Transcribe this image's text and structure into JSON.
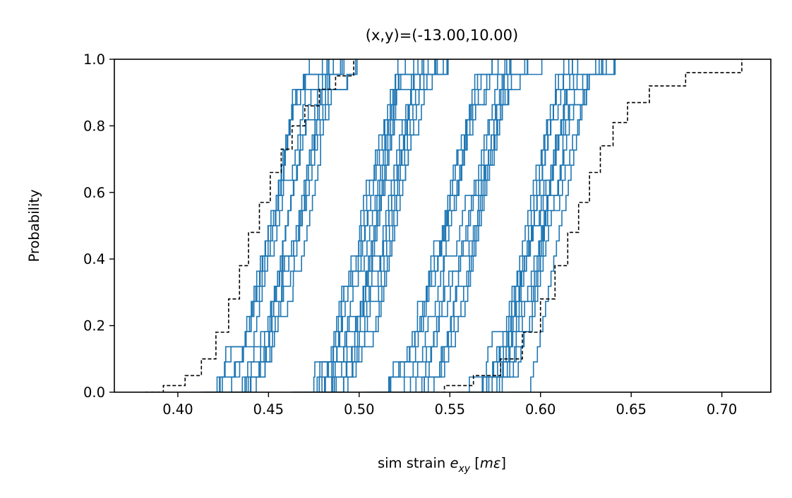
{
  "chart_data": {
    "type": "line",
    "title": "(x,y)=(-13.00,10.00)",
    "xlabel": {
      "prefix": "sim strain ",
      "var": "e",
      "sub": "xy",
      "unit_open": " [",
      "unit_italic": "mε",
      "unit_close": "]"
    },
    "ylabel": "Probability",
    "xlim": [
      0.365,
      0.727
    ],
    "ylim": [
      0.0,
      1.0
    ],
    "xticks": [
      0.4,
      0.45,
      0.5,
      0.55,
      0.6,
      0.65,
      0.7
    ],
    "xtick_labels": [
      "0.40",
      "0.45",
      "0.50",
      "0.55",
      "0.60",
      "0.65",
      "0.70"
    ],
    "yticks": [
      0.0,
      0.2,
      0.4,
      0.6,
      0.8,
      1.0
    ],
    "ytick_labels": [
      "0.0",
      "0.2",
      "0.4",
      "0.6",
      "0.8",
      "1.0"
    ],
    "grid": false,
    "series_style": {
      "ecdf_color": "#1f77b4",
      "envelope_color": "#000000",
      "envelope_dash": "dashed"
    },
    "ecdf_groups": [
      {
        "center": 0.455,
        "spread": 0.026,
        "count": 12
      },
      {
        "center": 0.508,
        "spread": 0.024,
        "count": 14
      },
      {
        "center": 0.553,
        "spread": 0.026,
        "count": 12
      },
      {
        "center": 0.595,
        "spread": 0.024,
        "count": 12
      }
    ],
    "envelope_lower": {
      "x": [
        0.382,
        0.392,
        0.404,
        0.413,
        0.421,
        0.428,
        0.434,
        0.439,
        0.445,
        0.451,
        0.457,
        0.463,
        0.47,
        0.478,
        0.487,
        0.497
      ],
      "y": [
        0.0,
        0.02,
        0.05,
        0.1,
        0.18,
        0.28,
        0.38,
        0.48,
        0.57,
        0.66,
        0.73,
        0.8,
        0.86,
        0.91,
        0.95,
        1.0
      ]
    },
    "envelope_upper": {
      "x": [
        0.533,
        0.547,
        0.563,
        0.578,
        0.59,
        0.6,
        0.608,
        0.615,
        0.621,
        0.627,
        0.633,
        0.64,
        0.648,
        0.66,
        0.68,
        0.711
      ],
      "y": [
        0.0,
        0.02,
        0.05,
        0.1,
        0.18,
        0.28,
        0.38,
        0.48,
        0.57,
        0.66,
        0.74,
        0.81,
        0.87,
        0.92,
        0.96,
        1.0
      ]
    }
  }
}
